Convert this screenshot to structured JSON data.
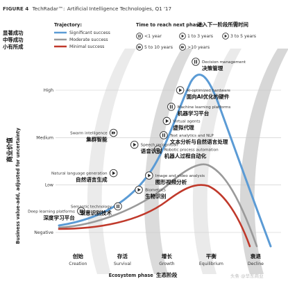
{
  "title": {
    "figure": "FIGURE 4",
    "brand": "TechRadar™:",
    "rest": "Artificial Intelligence Technologies, Q1 '17"
  },
  "legend": {
    "trajectory_title": "Trajectory:",
    "trajectory": [
      {
        "label": "Significant success",
        "label_cn": "显著成功",
        "color": "#5b9bd5"
      },
      {
        "label": "Moderate success",
        "label_cn": "中等成功",
        "color": "#9a9a9a"
      },
      {
        "label": "Minimal success",
        "label_cn": "小有所成",
        "color": "#c0392b"
      }
    ],
    "time_title": "Time to reach next phase:",
    "time_title_cn": "进入下一阶段所需时间",
    "time_items": [
      {
        "icon": "pause-icon",
        "label": "<1 year"
      },
      {
        "icon": "play-icon",
        "label": "1 to 3 years"
      },
      {
        "icon": "play-icon",
        "label": "3 to 5 years"
      },
      {
        "icon": "fast-forward-icon",
        "label": "5 to 10 years"
      },
      {
        "icon": "fast-forward-icon",
        "label": ">10 years"
      }
    ]
  },
  "chart_data": {
    "type": "line",
    "ylabel": "Business value-add, adjusted for uncertainty",
    "ylabel_cn": "商业价值",
    "xlabel": "Ecosystem phase",
    "xlabel_cn": "生态阶段",
    "y_levels": [
      "High",
      "Medium",
      "Low",
      "Negative"
    ],
    "phases": [
      {
        "en": "Creation",
        "cn": "创始"
      },
      {
        "en": "Survival",
        "cn": "存活"
      },
      {
        "en": "Growth",
        "cn": "增长"
      },
      {
        "en": "Equilibrium",
        "cn": "平衡"
      },
      {
        "en": "Decline",
        "cn": "衰退"
      }
    ],
    "series": [
      {
        "name": "Significant success",
        "color": "#5b9bd5"
      },
      {
        "name": "Moderate success",
        "color": "#9a9a9a"
      },
      {
        "name": "Minimal success",
        "color": "#c0392b"
      }
    ],
    "technologies": [
      {
        "en": "Decision management",
        "cn": "决策管理",
        "series": 0,
        "phase": 3.0,
        "value": 3.6,
        "icon": "pause"
      },
      {
        "en": "AI-optimized hardware",
        "cn": "面向AI优化的硬件",
        "series": 0,
        "phase": 2.65,
        "value": 3.0,
        "icon": "play"
      },
      {
        "en": "Machine learning platforms",
        "cn": "机器学习平台",
        "series": 0,
        "phase": 2.45,
        "value": 2.65,
        "icon": "pause"
      },
      {
        "en": "Virtual agents",
        "cn": "虚拟代理",
        "series": 0,
        "phase": 2.35,
        "value": 2.35,
        "icon": "play"
      },
      {
        "en": "Swarm intelligence",
        "cn": "集群智能",
        "series": 0,
        "phase": 1.15,
        "value": 2.1,
        "icon": "ff"
      },
      {
        "en": "Text analytics and NLP",
        "cn": "文本分析与自然语言处理",
        "series": 0,
        "phase": 2.28,
        "value": 2.05,
        "icon": "pause"
      },
      {
        "en": "Speech recognition",
        "cn": "语音识别",
        "series": 0,
        "phase": 1.62,
        "value": 1.85,
        "icon": "play"
      },
      {
        "en": "Robotic process automation",
        "cn": "机器人过程自动化",
        "series": 0,
        "phase": 2.15,
        "value": 1.75,
        "icon": "pause"
      },
      {
        "en": "Natural language generation",
        "cn": "自然语言生成",
        "series": 0,
        "phase": 1.15,
        "value": 1.25,
        "icon": "play"
      },
      {
        "en": "Image and video analysis",
        "cn": "图形视频分析",
        "series": 0,
        "phase": 1.95,
        "value": 1.2,
        "icon": "play"
      },
      {
        "en": "Biometrics",
        "cn": "生物识别",
        "series": 0,
        "phase": 1.72,
        "value": 0.9,
        "icon": "play"
      },
      {
        "en": "Semantic technology",
        "cn": "语意识别技术",
        "series": 1,
        "phase": 1.25,
        "value": 0.55,
        "icon": "pause"
      },
      {
        "en": "Deep learning platforms",
        "cn": "深度学习平台",
        "series": 0,
        "phase": 0.42,
        "value": 0.45,
        "icon": "pause"
      }
    ]
  },
  "watermark": "头条 @华东商业"
}
